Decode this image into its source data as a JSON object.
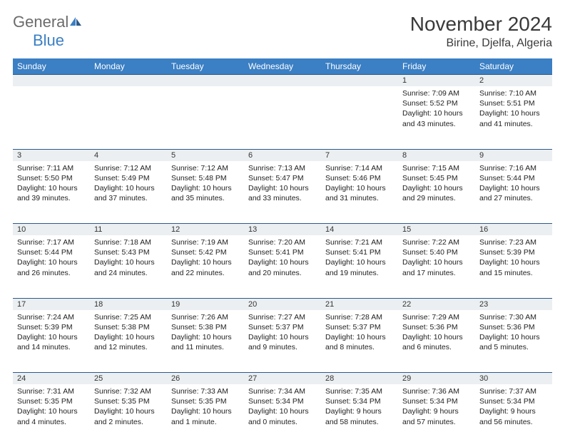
{
  "logo": {
    "text1": "General",
    "text2": "Blue"
  },
  "title": "November 2024",
  "location": "Birine, Djelfa, Algeria",
  "colors": {
    "header_bg": "#3b7fc4",
    "header_text": "#ffffff",
    "daynum_bg": "#eceff1",
    "border": "#2c5a8a",
    "logo_gray": "#6b6b6b",
    "logo_blue": "#3b7fc4"
  },
  "weekdays": [
    "Sunday",
    "Monday",
    "Tuesday",
    "Wednesday",
    "Thursday",
    "Friday",
    "Saturday"
  ],
  "weeks": [
    {
      "nums": [
        "",
        "",
        "",
        "",
        "",
        "1",
        "2"
      ],
      "cells": [
        null,
        null,
        null,
        null,
        null,
        {
          "sunrise": "7:09 AM",
          "sunset": "5:52 PM",
          "daylight": "10 hours and 43 minutes."
        },
        {
          "sunrise": "7:10 AM",
          "sunset": "5:51 PM",
          "daylight": "10 hours and 41 minutes."
        }
      ]
    },
    {
      "nums": [
        "3",
        "4",
        "5",
        "6",
        "7",
        "8",
        "9"
      ],
      "cells": [
        {
          "sunrise": "7:11 AM",
          "sunset": "5:50 PM",
          "daylight": "10 hours and 39 minutes."
        },
        {
          "sunrise": "7:12 AM",
          "sunset": "5:49 PM",
          "daylight": "10 hours and 37 minutes."
        },
        {
          "sunrise": "7:12 AM",
          "sunset": "5:48 PM",
          "daylight": "10 hours and 35 minutes."
        },
        {
          "sunrise": "7:13 AM",
          "sunset": "5:47 PM",
          "daylight": "10 hours and 33 minutes."
        },
        {
          "sunrise": "7:14 AM",
          "sunset": "5:46 PM",
          "daylight": "10 hours and 31 minutes."
        },
        {
          "sunrise": "7:15 AM",
          "sunset": "5:45 PM",
          "daylight": "10 hours and 29 minutes."
        },
        {
          "sunrise": "7:16 AM",
          "sunset": "5:44 PM",
          "daylight": "10 hours and 27 minutes."
        }
      ]
    },
    {
      "nums": [
        "10",
        "11",
        "12",
        "13",
        "14",
        "15",
        "16"
      ],
      "cells": [
        {
          "sunrise": "7:17 AM",
          "sunset": "5:44 PM",
          "daylight": "10 hours and 26 minutes."
        },
        {
          "sunrise": "7:18 AM",
          "sunset": "5:43 PM",
          "daylight": "10 hours and 24 minutes."
        },
        {
          "sunrise": "7:19 AM",
          "sunset": "5:42 PM",
          "daylight": "10 hours and 22 minutes."
        },
        {
          "sunrise": "7:20 AM",
          "sunset": "5:41 PM",
          "daylight": "10 hours and 20 minutes."
        },
        {
          "sunrise": "7:21 AM",
          "sunset": "5:41 PM",
          "daylight": "10 hours and 19 minutes."
        },
        {
          "sunrise": "7:22 AM",
          "sunset": "5:40 PM",
          "daylight": "10 hours and 17 minutes."
        },
        {
          "sunrise": "7:23 AM",
          "sunset": "5:39 PM",
          "daylight": "10 hours and 15 minutes."
        }
      ]
    },
    {
      "nums": [
        "17",
        "18",
        "19",
        "20",
        "21",
        "22",
        "23"
      ],
      "cells": [
        {
          "sunrise": "7:24 AM",
          "sunset": "5:39 PM",
          "daylight": "10 hours and 14 minutes."
        },
        {
          "sunrise": "7:25 AM",
          "sunset": "5:38 PM",
          "daylight": "10 hours and 12 minutes."
        },
        {
          "sunrise": "7:26 AM",
          "sunset": "5:38 PM",
          "daylight": "10 hours and 11 minutes."
        },
        {
          "sunrise": "7:27 AM",
          "sunset": "5:37 PM",
          "daylight": "10 hours and 9 minutes."
        },
        {
          "sunrise": "7:28 AM",
          "sunset": "5:37 PM",
          "daylight": "10 hours and 8 minutes."
        },
        {
          "sunrise": "7:29 AM",
          "sunset": "5:36 PM",
          "daylight": "10 hours and 6 minutes."
        },
        {
          "sunrise": "7:30 AM",
          "sunset": "5:36 PM",
          "daylight": "10 hours and 5 minutes."
        }
      ]
    },
    {
      "nums": [
        "24",
        "25",
        "26",
        "27",
        "28",
        "29",
        "30"
      ],
      "cells": [
        {
          "sunrise": "7:31 AM",
          "sunset": "5:35 PM",
          "daylight": "10 hours and 4 minutes."
        },
        {
          "sunrise": "7:32 AM",
          "sunset": "5:35 PM",
          "daylight": "10 hours and 2 minutes."
        },
        {
          "sunrise": "7:33 AM",
          "sunset": "5:35 PM",
          "daylight": "10 hours and 1 minute."
        },
        {
          "sunrise": "7:34 AM",
          "sunset": "5:34 PM",
          "daylight": "10 hours and 0 minutes."
        },
        {
          "sunrise": "7:35 AM",
          "sunset": "5:34 PM",
          "daylight": "9 hours and 58 minutes."
        },
        {
          "sunrise": "7:36 AM",
          "sunset": "5:34 PM",
          "daylight": "9 hours and 57 minutes."
        },
        {
          "sunrise": "7:37 AM",
          "sunset": "5:34 PM",
          "daylight": "9 hours and 56 minutes."
        }
      ]
    }
  ],
  "labels": {
    "sunrise": "Sunrise: ",
    "sunset": "Sunset: ",
    "daylight": "Daylight: "
  }
}
